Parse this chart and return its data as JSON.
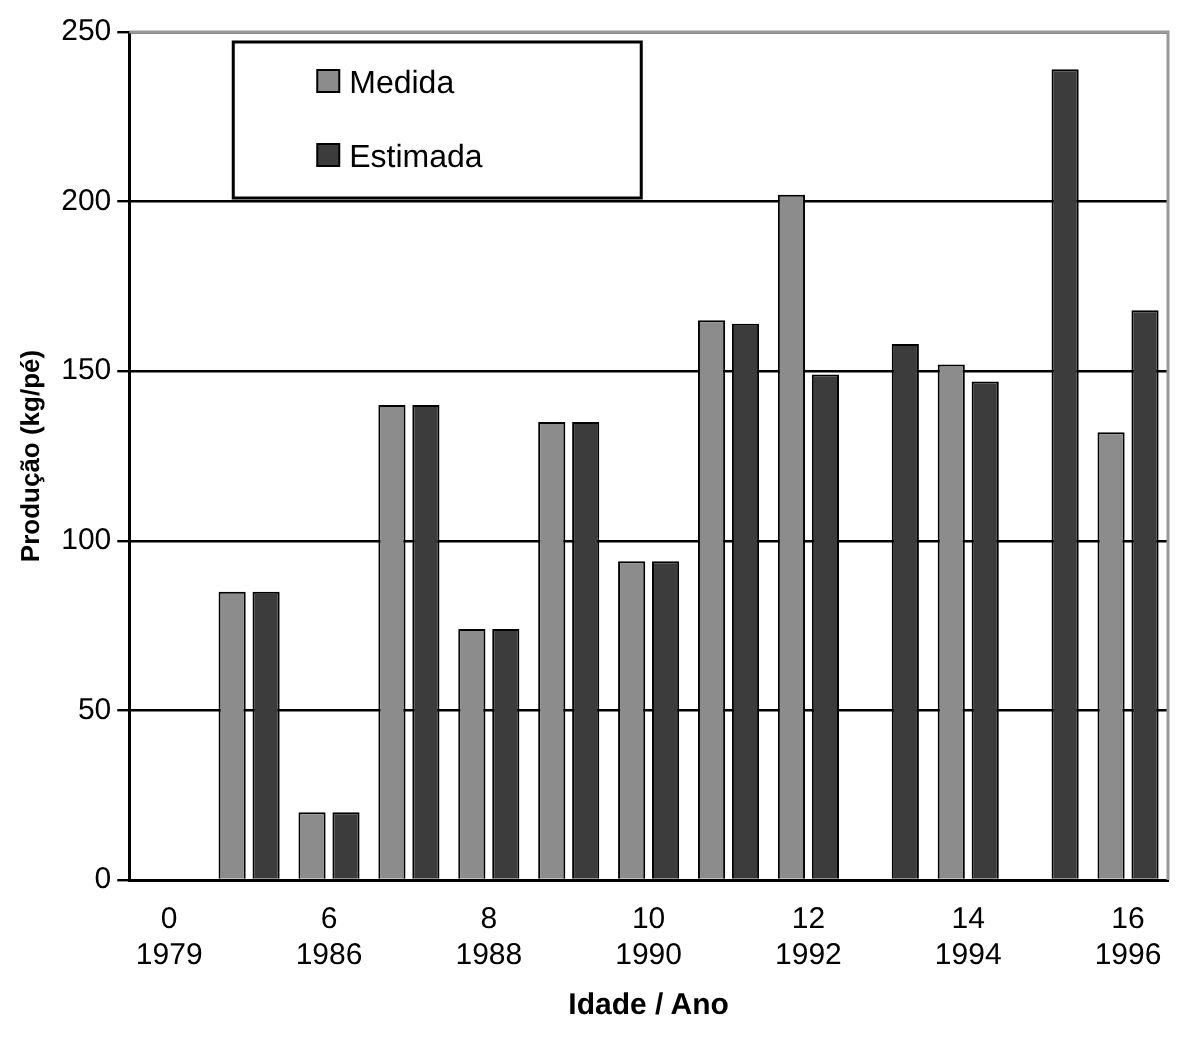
{
  "chart_data": {
    "type": "bar",
    "xlabel": "Idade / Ano",
    "ylabel": "Produção (kg/pé)",
    "categories": [
      "0\n1979",
      null,
      "6\n1986",
      null,
      "8\n1988",
      null,
      "10\n1990",
      null,
      "12\n1992",
      null,
      "14\n1994",
      null,
      "16\n1996"
    ],
    "series": [
      {
        "name": "Medida",
        "color": "#8c8c8c",
        "values": [
          0,
          85,
          20,
          140,
          74,
          135,
          94,
          165,
          202,
          null,
          152,
          null,
          132
        ]
      },
      {
        "name": "Estimada",
        "color": "#3c3c3c",
        "values": [
          0,
          85,
          20,
          140,
          74,
          135,
          94,
          164,
          149,
          158,
          147,
          239,
          168
        ]
      }
    ],
    "ylim": [
      0,
      250
    ],
    "yticks": [
      0,
      50,
      100,
      150,
      200,
      250
    ],
    "grid": "y",
    "legend": "top"
  }
}
